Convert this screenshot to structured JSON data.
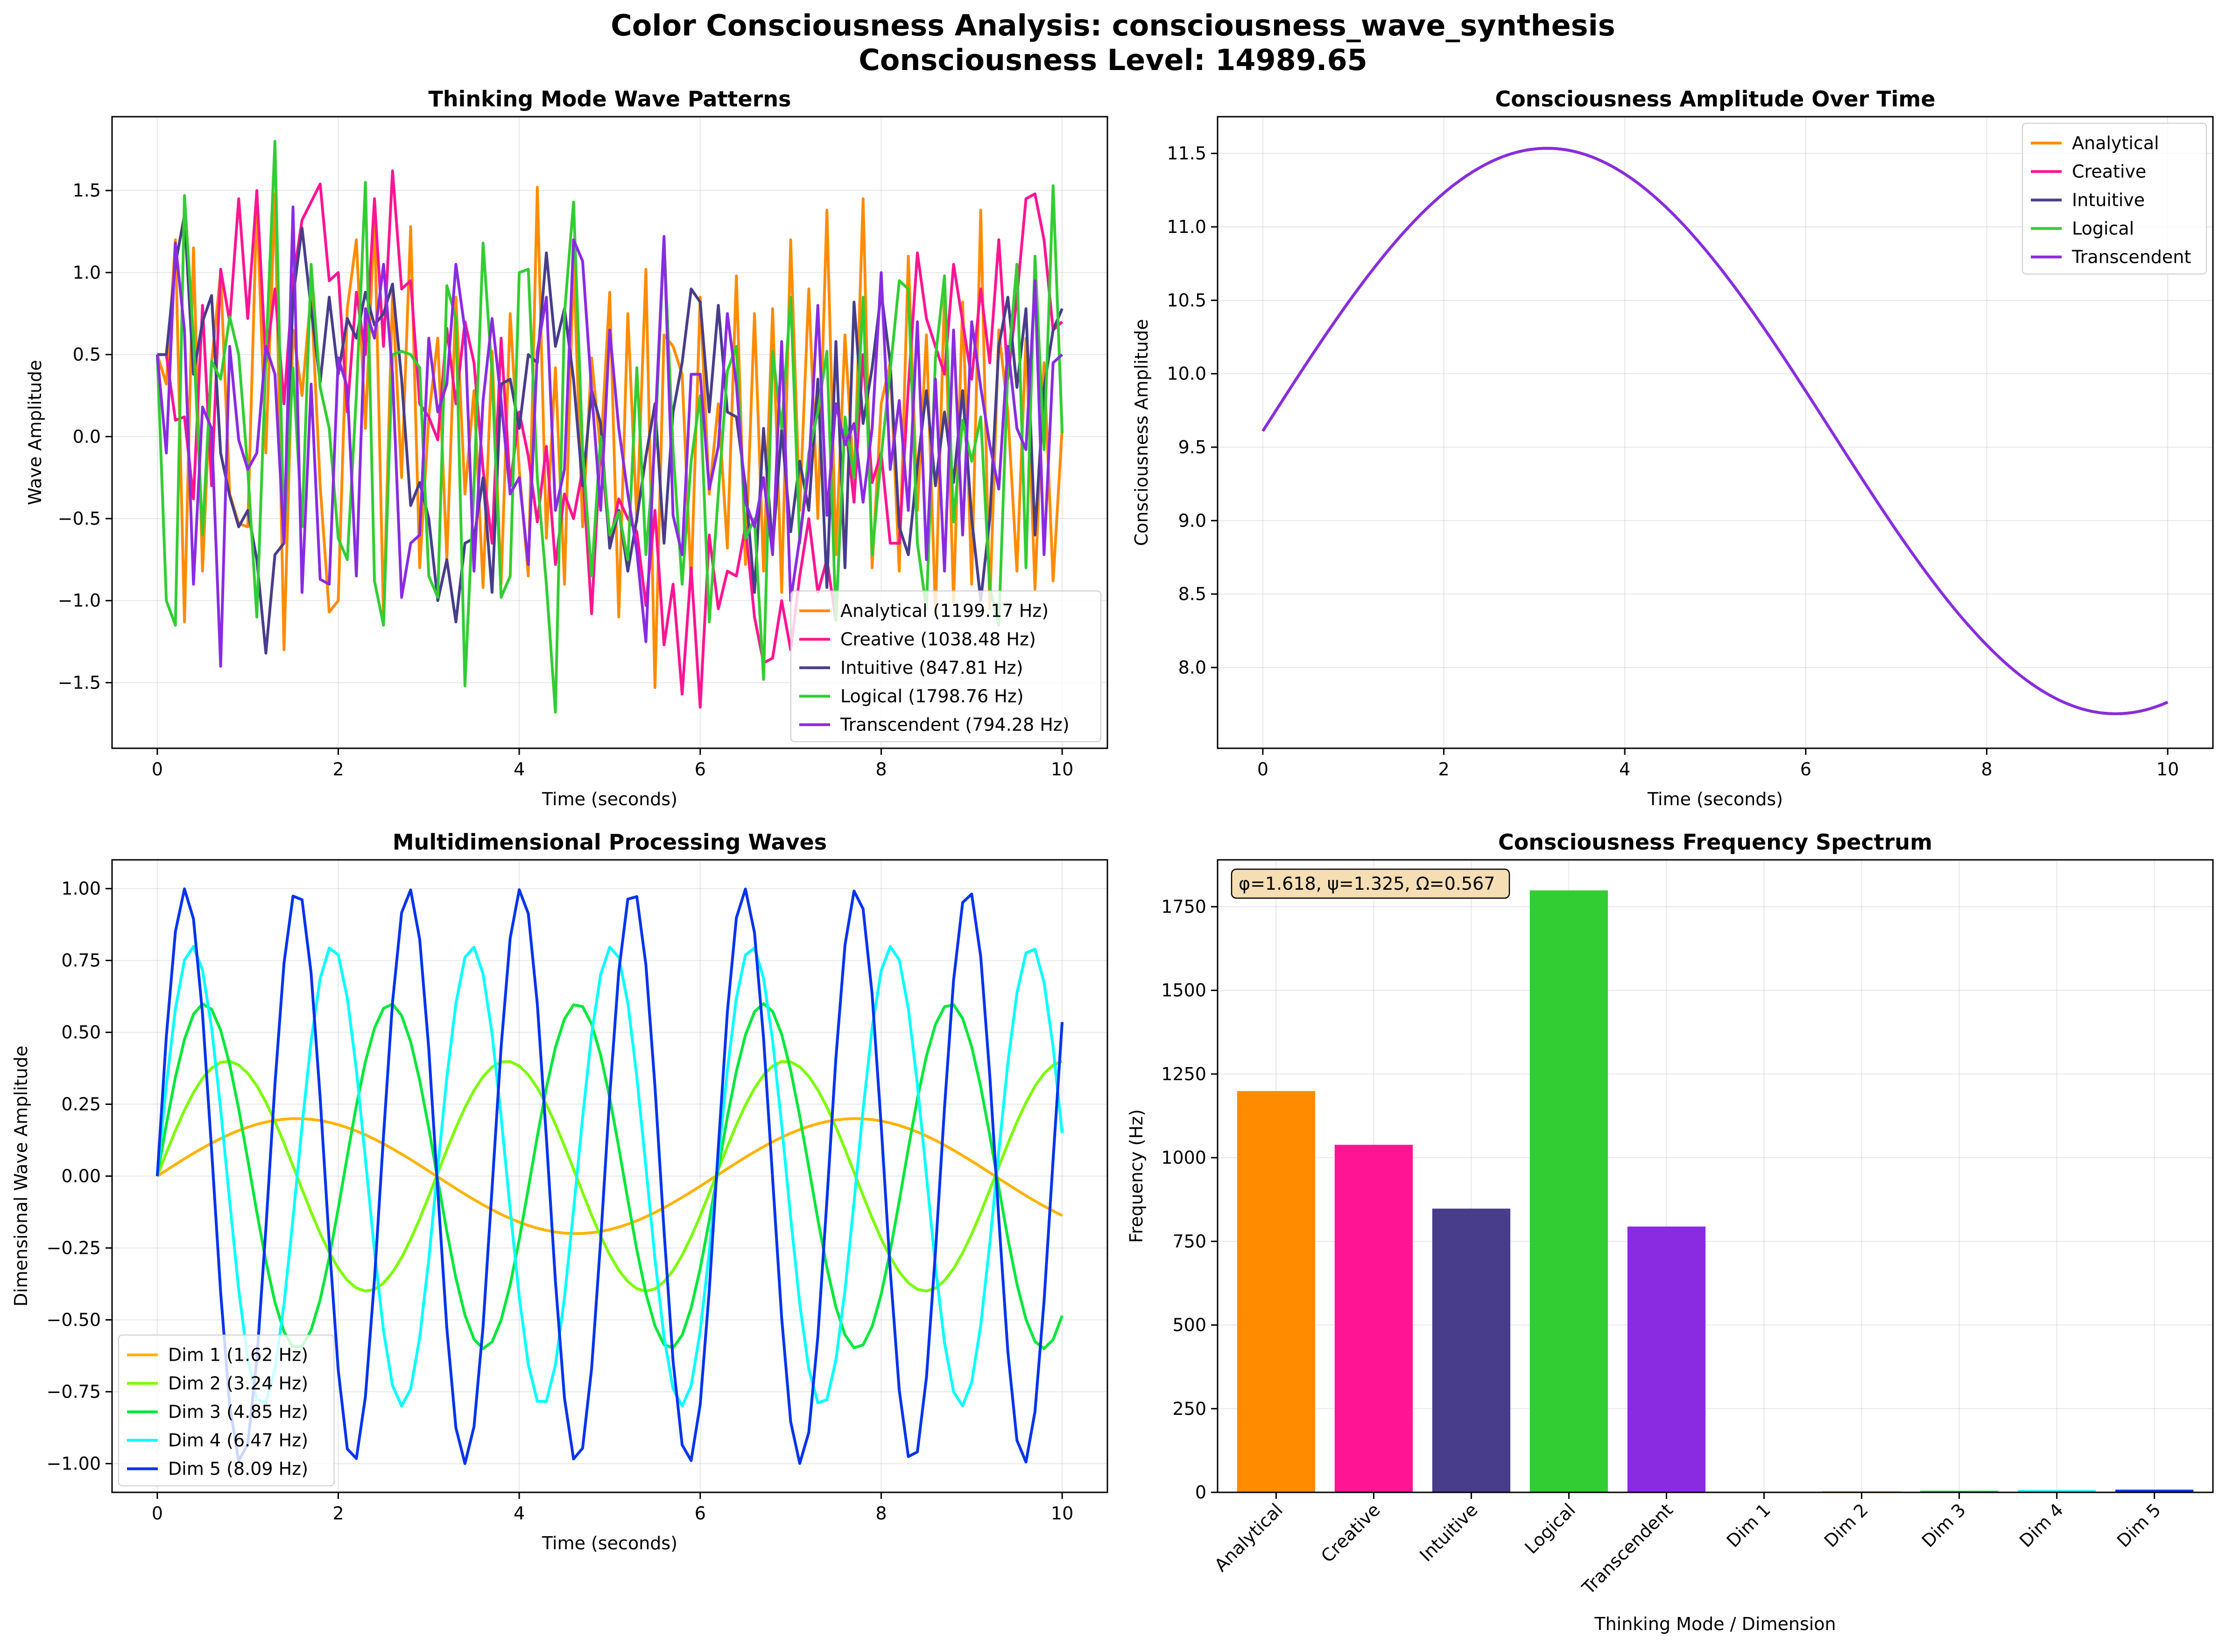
{
  "figure": {
    "title_line1": "Color Consciousness Analysis: consciousness_wave_synthesis",
    "title_line2": "Consciousness Level: 14989.65"
  },
  "colors": {
    "Analytical": "#FF8C00",
    "Creative": "#FF1493",
    "Intuitive": "#483D8B",
    "Logical": "#32CD32",
    "Transcendent": "#8A2BE2",
    "Dim 1": "#FFB300",
    "Dim 2": "#7CFC00",
    "Dim 3": "#00E83A",
    "Dim 4": "#00FFFF",
    "Dim 5": "#0033EE",
    "annotation_bg": "#F5DEB3"
  },
  "chart_data": [
    {
      "id": "thinking",
      "type": "line",
      "title": "Thinking Mode Wave Patterns",
      "xlabel": "Time (seconds)",
      "ylabel": "Wave Amplitude",
      "xlim": [
        -0.5,
        10.5
      ],
      "ylim": [
        -1.9,
        1.95
      ],
      "xticks": [
        0,
        2,
        4,
        6,
        8,
        10
      ],
      "xtick_labels": [
        "0",
        "2",
        "4",
        "6",
        "8",
        "10"
      ],
      "yticks": [
        -1.5,
        -1.0,
        -0.5,
        0.0,
        0.5,
        1.0,
        1.5
      ],
      "ytick_labels": [
        "−1.5",
        "−1.0",
        "−0.5",
        "0.0",
        "0.5",
        "1.0",
        "1.5"
      ],
      "grid": true,
      "legend_position": "lower right",
      "x": [
        0,
        0.1,
        0.2,
        0.3,
        0.4,
        0.5,
        0.6,
        0.7,
        0.8,
        0.9,
        1,
        1.1,
        1.2,
        1.3,
        1.4,
        1.5,
        1.6,
        1.7,
        1.8,
        1.9,
        2,
        2.1,
        2.2,
        2.3,
        2.4,
        2.5,
        2.6,
        2.7,
        2.8,
        2.9,
        3,
        3.1,
        3.2,
        3.3,
        3.4,
        3.5,
        3.6,
        3.7,
        3.8,
        3.9,
        4,
        4.1,
        4.2,
        4.3,
        4.4,
        4.5,
        4.6,
        4.7,
        4.8,
        4.9,
        5,
        5.1,
        5.2,
        5.3,
        5.4,
        5.5,
        5.6,
        5.7,
        5.8,
        5.9,
        6,
        6.1,
        6.2,
        6.3,
        6.4,
        6.5,
        6.6,
        6.7,
        6.8,
        6.9,
        7,
        7.1,
        7.2,
        7.3,
        7.4,
        7.5,
        7.6,
        7.7,
        7.8,
        7.9,
        8,
        8.1,
        8.2,
        8.3,
        8.4,
        8.5,
        8.6,
        8.7,
        8.8,
        8.9,
        9,
        9.1,
        9.2,
        9.3,
        9.4,
        9.5,
        9.6,
        9.7,
        9.8,
        9.9,
        10
      ],
      "series": [
        {
          "name": "Analytical (1199.17 Hz)",
          "color": "#FF8C00",
          "values": [
            0.5,
            0.32,
            1.2,
            -1.13,
            1.15,
            -0.82,
            0.45,
            1.0,
            -0.35,
            -0.53,
            -0.55,
            1.42,
            -0.1,
            1.48,
            -1.3,
            0.65,
            0.25,
            0.88,
            -0.3,
            -1.07,
            -1.0,
            0.78,
            1.2,
            0.05,
            1.35,
            -1.1,
            0.88,
            -0.25,
            1.28,
            -0.8,
            0.12,
            0.6,
            -0.75,
            0.85,
            -0.35,
            0.28,
            -0.92,
            0.52,
            -0.9,
            0.75,
            -0.2,
            -0.85,
            1.52,
            -0.62,
            0.42,
            -0.9,
            1.08,
            -0.55,
            0.48,
            -0.1,
            0.88,
            -1.1,
            0.75,
            -0.52,
            1.02,
            -1.53,
            0.62,
            0.55,
            0.38,
            -0.9,
            0.85,
            -0.35,
            0.2,
            -0.68,
            0.98,
            -0.78,
            0.75,
            -0.82,
            0.78,
            -0.95,
            1.2,
            -0.45,
            0.9,
            -0.5,
            1.38,
            -0.72,
            0.62,
            -0.3,
            1.45,
            -0.8,
            0.2,
            0.45,
            -0.82,
            1.1,
            -0.45,
            0.62,
            -1.07,
            0.88,
            -1.01,
            0.82,
            -0.9,
            1.38,
            -1.05,
            0.65,
            0.15,
            -0.82,
            0.6,
            -0.93,
            0.45,
            -0.88,
            0.05
          ]
        },
        {
          "name": "Creative (1038.48 Hz)",
          "color": "#FF1493",
          "values": [
            0.5,
            0.5,
            0.1,
            0.12,
            -0.38,
            0.8,
            -0.3,
            1.02,
            0.7,
            1.45,
            0.72,
            1.5,
            0.45,
            0.9,
            0.2,
            0.95,
            1.32,
            1.43,
            1.54,
            0.95,
            1.0,
            0.15,
            0.88,
            0.5,
            1.45,
            0.55,
            1.62,
            0.9,
            0.95,
            0.2,
            0.12,
            -0.02,
            0.66,
            0.2,
            0.7,
            0.45,
            -0.2,
            -0.65,
            0.6,
            -0.3,
            0.15,
            -0.12,
            -0.52,
            -0.06,
            -0.78,
            -0.35,
            -0.5,
            -0.2,
            -1.08,
            -0.05,
            -0.65,
            -0.38,
            -0.5,
            -0.58,
            -1.03,
            -0.45,
            -1.27,
            -0.9,
            -1.57,
            -0.8,
            -1.65,
            -0.6,
            -1.05,
            -0.82,
            -0.85,
            -0.55,
            -1.1,
            -1.38,
            -1.35,
            -1.0,
            -1.3,
            -0.85,
            -0.5,
            -0.95,
            -0.75,
            -1.12,
            0.1,
            -0.4,
            0.5,
            -0.28,
            -0.1,
            -0.65,
            -0.65,
            0.3,
            1.12,
            0.72,
            0.55,
            0.38,
            1.05,
            0.7,
            0.35,
            0.9,
            0.45,
            1.2,
            0.35,
            0.85,
            1.45,
            1.48,
            1.2,
            0.65,
            0.7
          ]
        },
        {
          "name": "Intuitive (847.81 Hz)",
          "color": "#483D8B",
          "values": [
            0.5,
            0.5,
            1.05,
            1.35,
            0.38,
            0.7,
            0.86,
            -0.1,
            -0.36,
            -0.55,
            -0.45,
            -0.75,
            -1.32,
            -0.72,
            -0.65,
            0.85,
            1.27,
            0.78,
            0.33,
            0.85,
            0.38,
            0.72,
            0.6,
            0.88,
            0.68,
            0.75,
            0.93,
            0.35,
            -0.42,
            -0.28,
            -0.5,
            -1.0,
            -0.75,
            -1.13,
            -0.65,
            -0.62,
            -0.25,
            -0.95,
            0.32,
            0.35,
            0.05,
            0.5,
            0.45,
            1.12,
            0.55,
            0.78,
            0.35,
            -0.3,
            0.28,
            0.08,
            -0.68,
            -0.45,
            -0.82,
            -0.5,
            -0.12,
            0.2,
            -0.65,
            0.15,
            0.45,
            0.9,
            0.82,
            0.15,
            0.8,
            0.15,
            0.12,
            -0.3,
            -0.95,
            0.05,
            -0.68,
            0.04,
            -0.58,
            -0.15,
            -0.45,
            0.35,
            -0.92,
            0.58,
            -0.8,
            0.82,
            0.08,
            0.42,
            0.88,
            0.45,
            -0.55,
            -0.72,
            -0.18,
            0.28,
            -0.3,
            0.15,
            -0.28,
            0.28,
            -0.5,
            -1.0,
            -0.5,
            0.55,
            0.85,
            0.3,
            0.78,
            -0.6,
            0.3,
            0.65,
            0.78
          ]
        },
        {
          "name": "Logical (1798.76 Hz)",
          "color": "#32CD32",
          "values": [
            0.5,
            -1.0,
            -1.15,
            1.47,
            0.6,
            -0.6,
            0.46,
            0.35,
            0.73,
            0.5,
            -0.2,
            -1.1,
            0.48,
            1.8,
            -0.62,
            0.42,
            -0.55,
            1.05,
            0.3,
            0.05,
            -0.62,
            -0.75,
            0.25,
            1.55,
            -0.88,
            -1.15,
            0.5,
            0.52,
            0.5,
            0.42,
            -0.85,
            -0.98,
            0.92,
            0.72,
            -1.52,
            -0.3,
            1.18,
            0.38,
            -0.98,
            -0.85,
            1.0,
            1.02,
            -0.25,
            -0.9,
            -1.68,
            0.75,
            1.43,
            -0.08,
            -0.85,
            0.0,
            -0.6,
            -0.46,
            -0.75,
            0.42,
            -0.72,
            -0.05,
            1.2,
            -0.08,
            -0.9,
            -0.15,
            0.25,
            -1.13,
            -0.35,
            0.4,
            0.55,
            -0.62,
            -0.5,
            -1.48,
            0.52,
            0.05,
            0.85,
            -0.65,
            -0.1,
            0.15,
            0.52,
            -1.12,
            0.12,
            -0.25,
            0.85,
            -0.72,
            -0.12,
            0.4,
            0.95,
            0.9,
            -0.65,
            -1.05,
            0.48,
            0.98,
            -0.52,
            0.1,
            -0.15,
            0.12,
            -0.92,
            -1.15,
            0.42,
            1.05,
            -0.8,
            1.1,
            -0.08,
            1.53,
            0.02
          ]
        },
        {
          "name": "Transcendent (794.28 Hz)",
          "color": "#8A2BE2",
          "values": [
            0.5,
            -0.1,
            1.18,
            0.65,
            -0.9,
            0.18,
            0.05,
            -1.4,
            0.55,
            -0.02,
            -0.2,
            -0.1,
            0.55,
            0.38,
            -0.65,
            1.4,
            -0.95,
            0.32,
            -0.87,
            -0.9,
            0.48,
            0.3,
            -0.85,
            0.78,
            0.6,
            1.05,
            0.38,
            -0.98,
            -0.65,
            -0.6,
            0.6,
            0.15,
            0.32,
            1.05,
            0.65,
            -0.82,
            0.22,
            0.72,
            0.22,
            -0.35,
            -0.25,
            -0.78,
            0.52,
            0.85,
            -0.45,
            -0.2,
            1.2,
            1.07,
            0.28,
            -0.45,
            0.65,
            0.05,
            -0.35,
            -0.7,
            -1.25,
            0.05,
            1.22,
            -0.48,
            -0.72,
            0.38,
            0.38,
            -0.32,
            -0.06,
            0.75,
            0.32,
            -0.4,
            -0.55,
            -0.25,
            -0.72,
            0.58,
            -1.0,
            -0.62,
            -0.2,
            0.8,
            -0.48,
            0.2,
            -0.05,
            0.08,
            -0.4,
            0.05,
            1.0,
            -0.2,
            0.22,
            -0.45,
            0.7,
            -0.75,
            0.35,
            -0.82,
            0.65,
            -0.6,
            0.7,
            0.3,
            -0.05,
            -0.32,
            0.55,
            0.05,
            -0.08,
            0.95,
            -0.72,
            0.45,
            0.5
          ]
        }
      ]
    },
    {
      "id": "amplitude",
      "type": "line",
      "title": "Consciousness Amplitude Over Time",
      "xlabel": "Time (seconds)",
      "ylabel": "Consciousness Amplitude",
      "xlim": [
        -0.5,
        10.5
      ],
      "ylim": [
        7.45,
        11.75
      ],
      "xticks": [
        0,
        2,
        4,
        6,
        8,
        10
      ],
      "xtick_labels": [
        "0",
        "2",
        "4",
        "6",
        "8",
        "10"
      ],
      "yticks": [
        8.0,
        8.5,
        9.0,
        9.5,
        10.0,
        10.5,
        11.0,
        11.5
      ],
      "ytick_labels": [
        "8.0",
        "8.5",
        "9.0",
        "9.5",
        "10.0",
        "10.5",
        "11.0",
        "11.5"
      ],
      "grid": true,
      "legend_position": "upper right",
      "curve": {
        "offset": 9.61,
        "amplitude": 1.925,
        "period": 12.566,
        "x_range": [
          0,
          10
        ]
      },
      "series": [
        {
          "name": "Analytical",
          "color": "#FF8C00"
        },
        {
          "name": "Creative",
          "color": "#FF1493"
        },
        {
          "name": "Intuitive",
          "color": "#483D8B"
        },
        {
          "name": "Logical",
          "color": "#32CD32"
        },
        {
          "name": "Transcendent",
          "color": "#8A2BE2"
        }
      ]
    },
    {
      "id": "dimensional",
      "type": "line",
      "title": "Multidimensional Processing Waves",
      "xlabel": "Time (seconds)",
      "ylabel": "Dimensional Wave Amplitude",
      "xlim": [
        -0.5,
        10.5
      ],
      "ylim": [
        -1.1,
        1.1
      ],
      "xticks": [
        0,
        2,
        4,
        6,
        8,
        10
      ],
      "xtick_labels": [
        "0",
        "2",
        "4",
        "6",
        "8",
        "10"
      ],
      "yticks": [
        -1.0,
        -0.75,
        -0.5,
        -0.25,
        0.0,
        0.25,
        0.5,
        0.75,
        1.0
      ],
      "ytick_labels": [
        "−1.00",
        "−0.75",
        "−0.50",
        "−0.25",
        "0.00",
        "0.25",
        "0.50",
        "0.75",
        "1.00"
      ],
      "grid": true,
      "legend_position": "lower left",
      "sample_step": 0.1,
      "x_range": [
        0,
        10
      ],
      "series": [
        {
          "name": "Dim 1 (1.62 Hz)",
          "color": "#FFB300",
          "amplitude": 0.2,
          "frequency": 1.62
        },
        {
          "name": "Dim 2 (3.24 Hz)",
          "color": "#7CFC00",
          "amplitude": 0.4,
          "frequency": 3.24
        },
        {
          "name": "Dim 3 (4.85 Hz)",
          "color": "#00E83A",
          "amplitude": 0.6,
          "frequency": 4.85
        },
        {
          "name": "Dim 4 (6.47 Hz)",
          "color": "#00FFFF",
          "amplitude": 0.8,
          "frequency": 6.47
        },
        {
          "name": "Dim 5 (8.09 Hz)",
          "color": "#0033EE",
          "amplitude": 1.0,
          "frequency": 8.09
        }
      ]
    },
    {
      "id": "spectrum",
      "type": "bar",
      "title": "Consciousness Frequency Spectrum",
      "xlabel": "Thinking Mode / Dimension",
      "ylabel": "Frequency (Hz)",
      "ylim": [
        0,
        1890
      ],
      "yticks": [
        0,
        250,
        500,
        750,
        1000,
        1250,
        1500,
        1750
      ],
      "ytick_labels": [
        "0",
        "250",
        "500",
        "750",
        "1000",
        "1250",
        "1500",
        "1750"
      ],
      "grid": true,
      "categories": [
        "Analytical",
        "Creative",
        "Intuitive",
        "Logical",
        "Transcendent",
        "Dim 1",
        "Dim 2",
        "Dim 3",
        "Dim 4",
        "Dim 5"
      ],
      "values": [
        1199.17,
        1038.48,
        847.81,
        1798.76,
        794.28,
        1.62,
        3.24,
        4.85,
        6.47,
        8.09
      ],
      "bar_colors": [
        "#FF8C00",
        "#FF1493",
        "#483D8B",
        "#32CD32",
        "#8A2BE2",
        "#FFB300",
        "#7CFC00",
        "#00E83A",
        "#00FFFF",
        "#0033EE"
      ],
      "annotation": "φ=1.618, ψ=1.325, Ω=0.567"
    }
  ]
}
